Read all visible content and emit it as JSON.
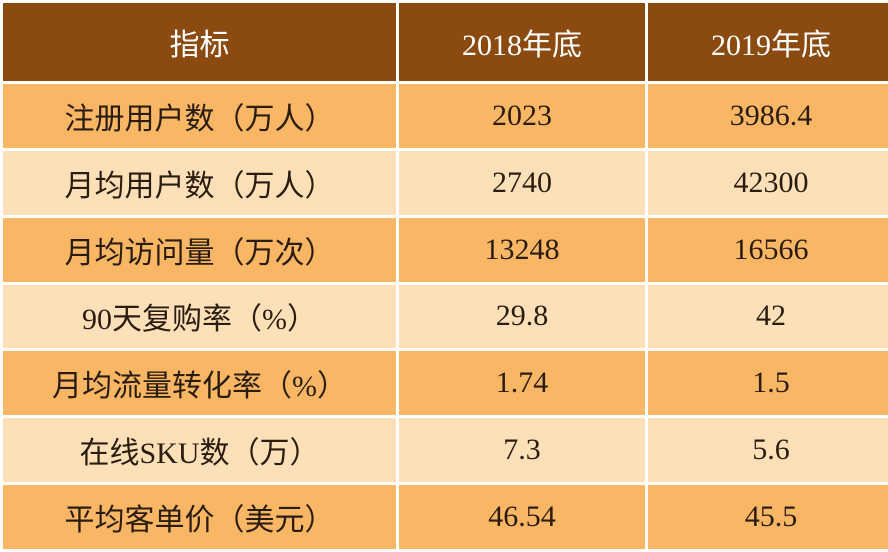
{
  "table": {
    "header": [
      "指标",
      "2018年底",
      "2019年底"
    ],
    "rows": [
      [
        "注册用户数（万人）",
        "2023",
        "3986.4"
      ],
      [
        "月均用户数（万人）",
        "2740",
        "42300"
      ],
      [
        "月均访问量（万次）",
        "13248",
        "16566"
      ],
      [
        "90天复购率（%）",
        "29.8",
        "42"
      ],
      [
        "月均流量转化率（%）",
        "1.74",
        "1.5"
      ],
      [
        "在线SKU数（万）",
        "7.3",
        "5.6"
      ],
      [
        "平均客单价（美元）",
        "46.54",
        "45.5"
      ]
    ]
  }
}
